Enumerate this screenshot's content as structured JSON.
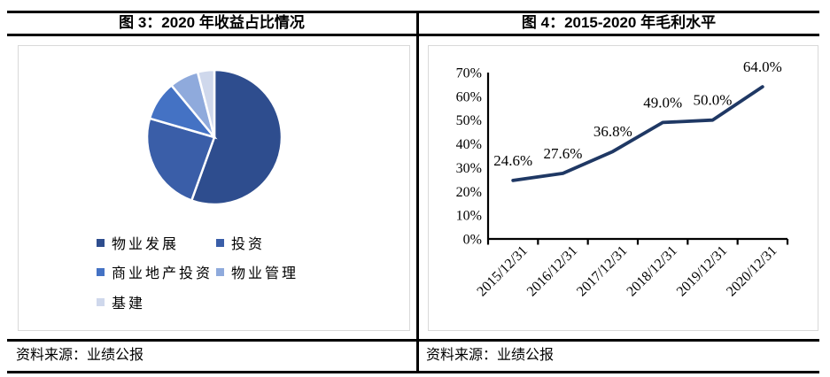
{
  "figures": [
    {
      "title": "图 3：2020 年收益占比情况",
      "source": "资料来源：业绩公报"
    },
    {
      "title": "图 4：2015-2020 年毛利水平",
      "source": "资料来源：业绩公报"
    }
  ],
  "chart_data": [
    {
      "type": "pie",
      "title": "图 3：2020 年收益占比情况",
      "labels": [
        "物业发展",
        "投资",
        "商业地产投资",
        "物业管理",
        "基建"
      ],
      "values": [
        55.5,
        24,
        9.5,
        7,
        4
      ],
      "colors": [
        "#2E4D8E",
        "#3A5EA8",
        "#4472C4",
        "#8FAADC",
        "#CFD8EC"
      ],
      "legend_position": "bottom",
      "legend_columns": 2,
      "slice_border_color": "#FFFFFF"
    },
    {
      "type": "line",
      "title": "图 4：2015-2020 年毛利水平",
      "x": [
        "2015/12/31",
        "2016/12/31",
        "2017/12/31",
        "2018/12/31",
        "2019/12/31",
        "2020/12/31"
      ],
      "values": [
        24.6,
        27.6,
        36.8,
        49.0,
        50.0,
        64.0
      ],
      "data_labels": [
        "24.6%",
        "27.6%",
        "36.8%",
        "49.0%",
        "50.0%",
        "64.0%"
      ],
      "ytick_labels": [
        "0%",
        "10%",
        "20%",
        "30%",
        "40%",
        "50%",
        "60%",
        "70%"
      ],
      "ylim": [
        0,
        70
      ],
      "ytick_step": 10,
      "grid": false,
      "legend_position": "none",
      "line_color": "#1F3864",
      "label_color": "#404040",
      "axis_color": "#000000"
    }
  ]
}
